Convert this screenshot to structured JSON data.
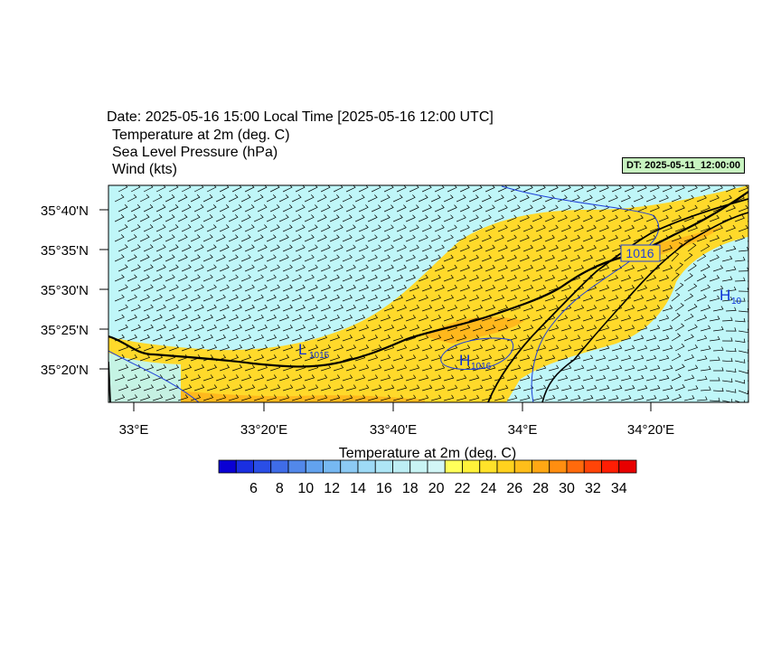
{
  "header": {
    "title": "Date: 2025-05-16  15:00 Local Time [2025-05-16  12:00 UTC]",
    "fields": [
      "Temperature at 2m   (deg. C)",
      "Sea Level Pressure   (hPa)",
      "Wind   (kts)"
    ],
    "dt_label": "DT: 2025-05-11_12:00:00"
  },
  "map": {
    "lat_labels": [
      "35°40'N",
      "35°35'N",
      "35°30'N",
      "35°25'N",
      "35°20'N"
    ],
    "lon_labels": [
      "33°E",
      "33°20'E",
      "33°40'E",
      "34°E",
      "34°20'E"
    ],
    "pressure_labels": [
      {
        "letter": "L",
        "sub": "1015"
      },
      {
        "letter": "H",
        "sub": "1016"
      },
      {
        "letter": "H",
        "sub": "10"
      }
    ],
    "isobar_label": "1016"
  },
  "colorbar": {
    "title": "Temperature at 2m  (deg. C)",
    "tick_labels": [
      "6",
      "8",
      "10",
      "12",
      "14",
      "16",
      "18",
      "20",
      "22",
      "24",
      "26",
      "28",
      "30",
      "32",
      "34"
    ],
    "colors": [
      "#0a00d4",
      "#1a2fe0",
      "#2a4ee6",
      "#3f6ce8",
      "#5288ea",
      "#62a2ee",
      "#76b8f2",
      "#8ccaf4",
      "#9edaf6",
      "#aee6f6",
      "#bdeef4",
      "#c8f4f4",
      "#d2f6f6",
      "#ffff5a",
      "#fff23a",
      "#ffe22a",
      "#ffd21e",
      "#ffbe1a",
      "#ffa814",
      "#ff8e10",
      "#ff6a0c",
      "#ff4408",
      "#ff1e04",
      "#e80000"
    ]
  },
  "legend_colors": {
    "cool": "#bff6f8",
    "warm": "#ffd92a",
    "hot": "#ffb01a",
    "coast": "#000000",
    "isobar": "#1f3fd6",
    "pressure_text": "#0a2fd6"
  }
}
